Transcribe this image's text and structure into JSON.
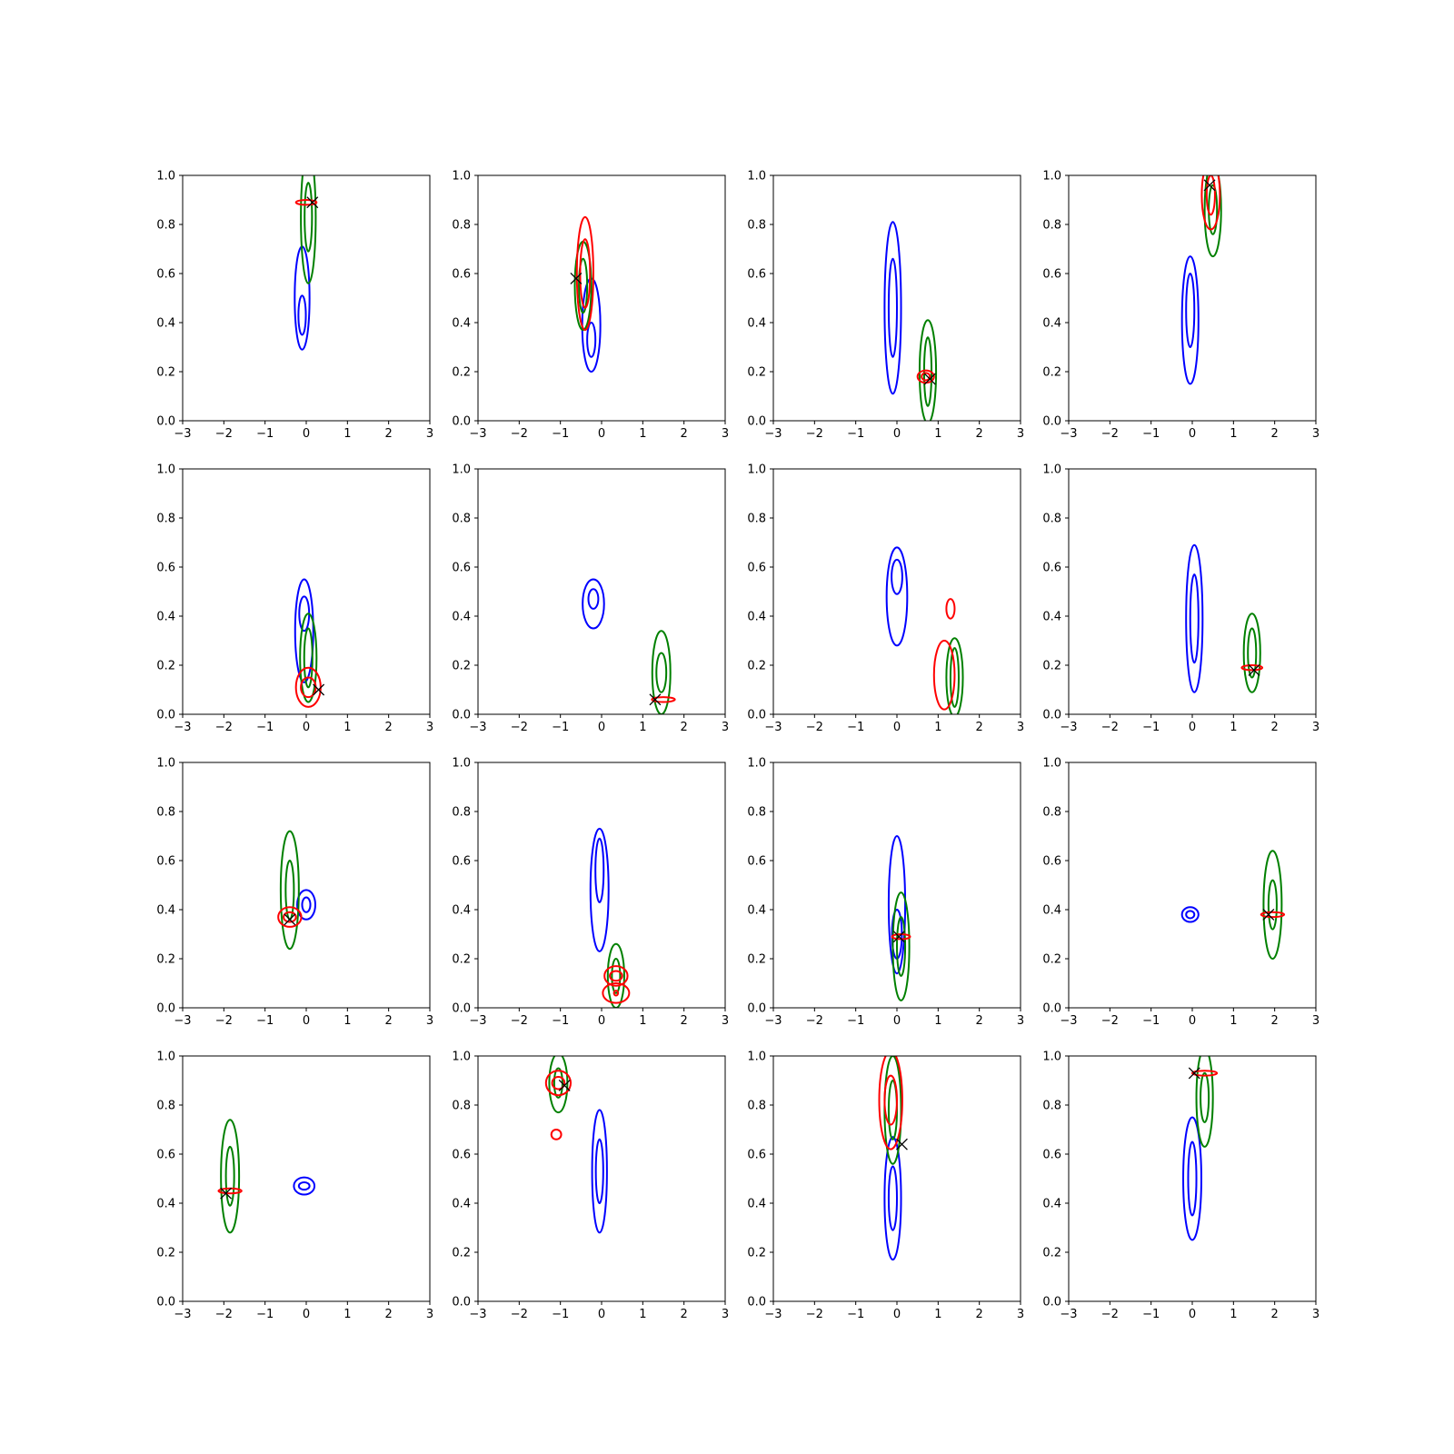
{
  "figure": {
    "colors": {
      "blue": "#0000ff",
      "green": "#008000",
      "red": "#ff0000",
      "marker": "#000000"
    }
  },
  "chart_data": [
    {
      "type": "contour",
      "xlim": [
        -3,
        3
      ],
      "ylim": [
        0,
        1
      ],
      "xticks": [
        "−3",
        "−2",
        "−1",
        "0",
        "1",
        "2",
        "3"
      ],
      "yticks": [
        "0.0",
        "0.2",
        "0.4",
        "0.6",
        "0.8",
        "1.0"
      ],
      "series": [
        {
          "color": "blue",
          "x": -0.1,
          "y": 0.5,
          "rx": [
            0.18,
            0.09
          ],
          "ry": [
            0.21,
            0.08
          ],
          "cy": 0.43
        },
        {
          "color": "green",
          "x": 0.05,
          "y": 0.83,
          "rx": [
            0.18,
            0.09
          ],
          "ry": [
            0.27,
            0.14
          ]
        },
        {
          "color": "red",
          "x": 0.0,
          "y": 0.89,
          "rx": [
            0.25
          ],
          "ry": [
            0.01
          ]
        }
      ],
      "marker": [
        0.15,
        0.89
      ]
    },
    {
      "type": "contour",
      "xlim": [
        -3,
        3
      ],
      "ylim": [
        0,
        1
      ],
      "xticks": [
        "−3",
        "−2",
        "−1",
        "0",
        "1",
        "2",
        "3"
      ],
      "yticks": [
        "0.0",
        "0.2",
        "0.4",
        "0.6",
        "0.8",
        "1.0"
      ],
      "series": [
        {
          "color": "blue",
          "x": -0.25,
          "y": 0.39,
          "rx": [
            0.22,
            0.1
          ],
          "ry": [
            0.19,
            0.07
          ],
          "cy": 0.33
        },
        {
          "color": "green",
          "x": -0.45,
          "y": 0.55,
          "rx": [
            0.2,
            0.1
          ],
          "ry": [
            0.18,
            0.11
          ]
        },
        {
          "color": "red",
          "x": -0.4,
          "y": 0.6,
          "rx": [
            0.2,
            0.12
          ],
          "ry": [
            0.23,
            0.14
          ]
        }
      ],
      "marker": [
        -0.62,
        0.58
      ]
    },
    {
      "type": "contour",
      "xlim": [
        -3,
        3
      ],
      "ylim": [
        0,
        1
      ],
      "xticks": [
        "−3",
        "−2",
        "−1",
        "0",
        "1",
        "2",
        "3"
      ],
      "yticks": [
        "0.0",
        "0.2",
        "0.4",
        "0.6",
        "0.8",
        "1.0"
      ],
      "series": [
        {
          "color": "blue",
          "x": -0.1,
          "y": 0.46,
          "rx": [
            0.2,
            0.1
          ],
          "ry": [
            0.35,
            0.2
          ]
        },
        {
          "color": "green",
          "x": 0.75,
          "y": 0.2,
          "rx": [
            0.2,
            0.09
          ],
          "ry": [
            0.21,
            0.14
          ]
        },
        {
          "color": "red",
          "x": 0.7,
          "y": 0.18,
          "rx": [
            0.2,
            0.1
          ],
          "ry": [
            0.025,
            0.015
          ]
        }
      ],
      "marker": [
        0.8,
        0.17
      ]
    },
    {
      "type": "contour",
      "xlim": [
        -3,
        3
      ],
      "ylim": [
        0,
        1
      ],
      "xticks": [
        "−3",
        "−2",
        "−1",
        "0",
        "1",
        "2",
        "3"
      ],
      "yticks": [
        "0.0",
        "0.2",
        "0.4",
        "0.6",
        "0.8",
        "1.0"
      ],
      "series": [
        {
          "color": "blue",
          "x": -0.05,
          "y": 0.41,
          "rx": [
            0.2,
            0.1
          ],
          "ry": [
            0.26,
            0.15
          ],
          "cy": 0.45
        },
        {
          "color": "green",
          "x": 0.5,
          "y": 0.86,
          "rx": [
            0.2,
            0.1
          ],
          "ry": [
            0.19,
            0.1
          ]
        },
        {
          "color": "red",
          "x": 0.45,
          "y": 0.92,
          "rx": [
            0.22,
            0.1
          ],
          "ry": [
            0.14,
            0.08
          ]
        }
      ],
      "marker": [
        0.42,
        0.96
      ]
    },
    {
      "type": "contour",
      "xlim": [
        -3,
        3
      ],
      "ylim": [
        0,
        1
      ],
      "xticks": [
        "−3",
        "−2",
        "−1",
        "0",
        "1",
        "2",
        "3"
      ],
      "yticks": [
        "0.0",
        "0.2",
        "0.4",
        "0.6",
        "0.8",
        "1.0"
      ],
      "series": [
        {
          "color": "blue",
          "x": -0.05,
          "y": 0.34,
          "rx": [
            0.22,
            0.12
          ],
          "ry": [
            0.21,
            0.07
          ],
          "cy": 0.41
        },
        {
          "color": "green",
          "x": 0.05,
          "y": 0.23,
          "rx": [
            0.2,
            0.1
          ],
          "ry": [
            0.18,
            0.12
          ]
        },
        {
          "color": "red",
          "x": 0.05,
          "y": 0.11,
          "rx": [
            0.3,
            0.18
          ],
          "ry": [
            0.08,
            0.04
          ]
        }
      ],
      "marker": [
        0.3,
        0.1
      ]
    },
    {
      "type": "contour",
      "xlim": [
        -3,
        3
      ],
      "ylim": [
        0,
        1
      ],
      "xticks": [
        "−3",
        "−2",
        "−1",
        "0",
        "1",
        "2",
        "3"
      ],
      "yticks": [
        "0.0",
        "0.2",
        "0.4",
        "0.6",
        "0.8",
        "1.0"
      ],
      "series": [
        {
          "color": "blue",
          "x": -0.2,
          "y": 0.45,
          "rx": [
            0.26,
            0.12
          ],
          "ry": [
            0.1,
            0.04
          ],
          "cy": 0.47
        },
        {
          "color": "green",
          "x": 1.45,
          "y": 0.17,
          "rx": [
            0.22,
            0.12
          ],
          "ry": [
            0.17,
            0.08
          ]
        },
        {
          "color": "red",
          "x": 1.5,
          "y": 0.06,
          "rx": [
            0.28
          ],
          "ry": [
            0.01
          ]
        }
      ],
      "marker": [
        1.3,
        0.06
      ]
    },
    {
      "type": "contour",
      "xlim": [
        -3,
        3
      ],
      "ylim": [
        0,
        1
      ],
      "xticks": [
        "−3",
        "−2",
        "−1",
        "0",
        "1",
        "2",
        "3"
      ],
      "yticks": [
        "0.0",
        "0.2",
        "0.4",
        "0.6",
        "0.8",
        "1.0"
      ],
      "series": [
        {
          "color": "blue",
          "x": 0.0,
          "y": 0.48,
          "rx": [
            0.25,
            0.13
          ],
          "ry": [
            0.2,
            0.07
          ],
          "cy": 0.56
        },
        {
          "color": "green",
          "x": 1.4,
          "y": 0.15,
          "rx": [
            0.2,
            0.1
          ],
          "ry": [
            0.16,
            0.12
          ]
        },
        {
          "color": "red",
          "x": 1.15,
          "y": 0.16,
          "rx": [
            0.25
          ],
          "ry": [
            0.14
          ]
        },
        {
          "color": "red",
          "x": 1.3,
          "y": 0.43,
          "rx": [
            0.1
          ],
          "ry": [
            0.04
          ]
        }
      ],
      "marker": null
    },
    {
      "type": "contour",
      "xlim": [
        -3,
        3
      ],
      "ylim": [
        0,
        1
      ],
      "xticks": [
        "−3",
        "−2",
        "−1",
        "0",
        "1",
        "2",
        "3"
      ],
      "yticks": [
        "0.0",
        "0.2",
        "0.4",
        "0.6",
        "0.8",
        "1.0"
      ],
      "series": [
        {
          "color": "blue",
          "x": 0.05,
          "y": 0.39,
          "rx": [
            0.2,
            0.1
          ],
          "ry": [
            0.3,
            0.18
          ]
        },
        {
          "color": "green",
          "x": 1.45,
          "y": 0.25,
          "rx": [
            0.2,
            0.1
          ],
          "ry": [
            0.16,
            0.1
          ]
        },
        {
          "color": "red",
          "x": 1.45,
          "y": 0.19,
          "rx": [
            0.25
          ],
          "ry": [
            0.01
          ]
        }
      ],
      "marker": [
        1.5,
        0.18
      ]
    },
    {
      "type": "contour",
      "xlim": [
        -3,
        3
      ],
      "ylim": [
        0,
        1
      ],
      "xticks": [
        "−3",
        "−2",
        "−1",
        "0",
        "1",
        "2",
        "3"
      ],
      "yticks": [
        "0.0",
        "0.2",
        "0.4",
        "0.6",
        "0.8",
        "1.0"
      ],
      "series": [
        {
          "color": "blue",
          "x": 0.0,
          "y": 0.42,
          "rx": [
            0.22,
            0.1
          ],
          "ry": [
            0.06,
            0.03
          ]
        },
        {
          "color": "green",
          "x": -0.4,
          "y": 0.48,
          "rx": [
            0.22,
            0.1
          ],
          "ry": [
            0.24,
            0.12
          ]
        },
        {
          "color": "red",
          "x": -0.4,
          "y": 0.37,
          "rx": [
            0.28,
            0.15
          ],
          "ry": [
            0.04,
            0.02
          ]
        }
      ],
      "marker": [
        -0.4,
        0.36
      ]
    },
    {
      "type": "contour",
      "xlim": [
        -3,
        3
      ],
      "ylim": [
        0,
        1
      ],
      "xticks": [
        "−3",
        "−2",
        "−1",
        "0",
        "1",
        "2",
        "3"
      ],
      "yticks": [
        "0.0",
        "0.2",
        "0.4",
        "0.6",
        "0.8",
        "1.0"
      ],
      "series": [
        {
          "color": "blue",
          "x": -0.05,
          "y": 0.48,
          "rx": [
            0.22,
            0.1
          ],
          "ry": [
            0.25,
            0.13
          ],
          "cy": 0.56
        },
        {
          "color": "green",
          "x": 0.35,
          "y": 0.13,
          "rx": [
            0.2,
            0.1
          ],
          "ry": [
            0.13,
            0.07
          ]
        },
        {
          "color": "red",
          "x": 0.35,
          "y": 0.13,
          "rx": [
            0.28,
            0.15
          ],
          "ry": [
            0.04,
            0.02
          ]
        },
        {
          "color": "red",
          "x": 0.35,
          "y": 0.06,
          "rx": [
            0.32,
            0.05
          ],
          "ry": [
            0.04,
            0.01
          ]
        }
      ],
      "marker": null
    },
    {
      "type": "contour",
      "xlim": [
        -3,
        3
      ],
      "ylim": [
        0,
        1
      ],
      "xticks": [
        "−3",
        "−2",
        "−1",
        "0",
        "1",
        "2",
        "3"
      ],
      "yticks": [
        "0.0",
        "0.2",
        "0.4",
        "0.6",
        "0.8",
        "1.0"
      ],
      "series": [
        {
          "color": "blue",
          "x": 0.0,
          "y": 0.42,
          "rx": [
            0.2,
            0.12
          ],
          "ry": [
            0.28,
            0.1
          ],
          "cy": 0.3
        },
        {
          "color": "green",
          "x": 0.1,
          "y": 0.25,
          "rx": [
            0.2,
            0.1
          ],
          "ry": [
            0.22,
            0.12
          ]
        },
        {
          "color": "red",
          "x": 0.1,
          "y": 0.29,
          "rx": [
            0.22
          ],
          "ry": [
            0.01
          ]
        }
      ],
      "marker": [
        0.05,
        0.29
      ]
    },
    {
      "type": "contour",
      "xlim": [
        -3,
        3
      ],
      "ylim": [
        0,
        1
      ],
      "xticks": [
        "−3",
        "−2",
        "−1",
        "0",
        "1",
        "2",
        "3"
      ],
      "yticks": [
        "0.0",
        "0.2",
        "0.4",
        "0.6",
        "0.8",
        "1.0"
      ],
      "series": [
        {
          "color": "blue",
          "x": -0.05,
          "y": 0.38,
          "rx": [
            0.2,
            0.1
          ],
          "ry": [
            0.03,
            0.015
          ]
        },
        {
          "color": "green",
          "x": 1.95,
          "y": 0.42,
          "rx": [
            0.22,
            0.1
          ],
          "ry": [
            0.22,
            0.1
          ]
        },
        {
          "color": "red",
          "x": 1.95,
          "y": 0.38,
          "rx": [
            0.28
          ],
          "ry": [
            0.01
          ]
        }
      ],
      "marker": [
        1.85,
        0.38
      ]
    },
    {
      "type": "contour",
      "xlim": [
        -3,
        3
      ],
      "ylim": [
        0,
        1
      ],
      "xticks": [
        "−3",
        "−2",
        "−1",
        "0",
        "1",
        "2",
        "3"
      ],
      "yticks": [
        "0.0",
        "0.2",
        "0.4",
        "0.6",
        "0.8",
        "1.0"
      ],
      "series": [
        {
          "color": "blue",
          "x": -0.05,
          "y": 0.47,
          "rx": [
            0.25,
            0.13
          ],
          "ry": [
            0.035,
            0.015
          ]
        },
        {
          "color": "green",
          "x": -1.85,
          "y": 0.51,
          "rx": [
            0.22,
            0.1
          ],
          "ry": [
            0.23,
            0.12
          ]
        },
        {
          "color": "red",
          "x": -1.85,
          "y": 0.45,
          "rx": [
            0.28
          ],
          "ry": [
            0.01
          ]
        }
      ],
      "marker": [
        -1.95,
        0.44
      ]
    },
    {
      "type": "contour",
      "xlim": [
        -3,
        3
      ],
      "ylim": [
        0,
        1
      ],
      "xticks": [
        "−3",
        "−2",
        "−1",
        "0",
        "1",
        "2",
        "3"
      ],
      "yticks": [
        "0.0",
        "0.2",
        "0.4",
        "0.6",
        "0.8",
        "1.0"
      ],
      "series": [
        {
          "color": "blue",
          "x": -0.05,
          "y": 0.53,
          "rx": [
            0.18,
            0.09
          ],
          "ry": [
            0.25,
            0.13
          ]
        },
        {
          "color": "green",
          "x": -1.05,
          "y": 0.89,
          "rx": [
            0.22,
            0.1
          ],
          "ry": [
            0.12,
            0.06
          ]
        },
        {
          "color": "red",
          "x": -1.05,
          "y": 0.89,
          "rx": [
            0.3,
            0.15
          ],
          "ry": [
            0.05,
            0.025
          ]
        },
        {
          "color": "red",
          "x": -1.1,
          "y": 0.68,
          "rx": [
            0.12
          ],
          "ry": [
            0.02
          ]
        }
      ],
      "marker": [
        -0.9,
        0.88
      ]
    },
    {
      "type": "contour",
      "xlim": [
        -3,
        3
      ],
      "ylim": [
        0,
        1
      ],
      "xticks": [
        "−3",
        "−2",
        "−1",
        "0",
        "1",
        "2",
        "3"
      ],
      "yticks": [
        "0.0",
        "0.2",
        "0.4",
        "0.6",
        "0.8",
        "1.0"
      ],
      "series": [
        {
          "color": "blue",
          "x": -0.1,
          "y": 0.42,
          "rx": [
            0.2,
            0.1
          ],
          "ry": [
            0.25,
            0.13
          ]
        },
        {
          "color": "green",
          "x": -0.1,
          "y": 0.78,
          "rx": [
            0.2,
            0.1
          ],
          "ry": [
            0.22,
            0.12
          ]
        },
        {
          "color": "red",
          "x": -0.15,
          "y": 0.82,
          "rx": [
            0.28,
            0.15
          ],
          "ry": [
            0.2,
            0.1
          ]
        }
      ],
      "marker": [
        0.12,
        0.64
      ]
    },
    {
      "type": "contour",
      "xlim": [
        -3,
        3
      ],
      "ylim": [
        0,
        1
      ],
      "xticks": [
        "−3",
        "−2",
        "−1",
        "0",
        "1",
        "2",
        "3"
      ],
      "yticks": [
        "0.0",
        "0.2",
        "0.4",
        "0.6",
        "0.8",
        "1.0"
      ],
      "series": [
        {
          "color": "blue",
          "x": 0.0,
          "y": 0.5,
          "rx": [
            0.22,
            0.1
          ],
          "ry": [
            0.25,
            0.15
          ]
        },
        {
          "color": "green",
          "x": 0.3,
          "y": 0.83,
          "rx": [
            0.2,
            0.1
          ],
          "ry": [
            0.2,
            0.1
          ]
        },
        {
          "color": "red",
          "x": 0.3,
          "y": 0.93,
          "rx": [
            0.3
          ],
          "ry": [
            0.01
          ]
        }
      ],
      "marker": [
        0.05,
        0.93
      ]
    }
  ]
}
